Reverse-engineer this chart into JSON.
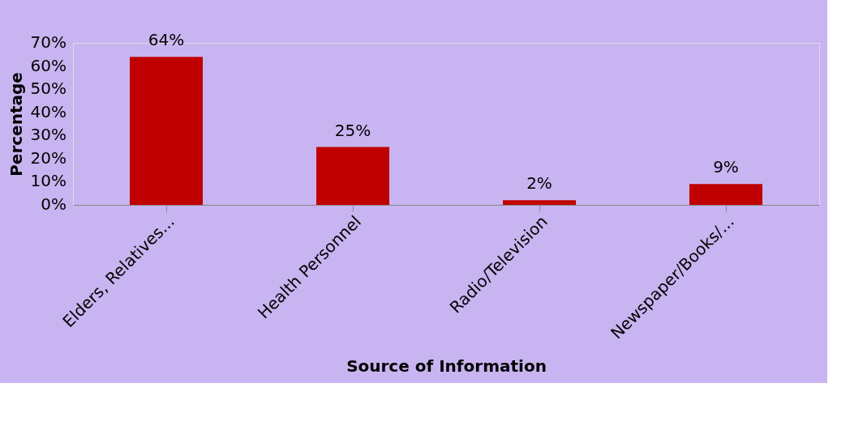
{
  "chart_data": {
    "type": "bar",
    "xlabel": "Source of Information",
    "ylabel": "Percentage",
    "categories": [
      "Elders, Relatives...",
      "Health Personnel",
      "Radio/Television",
      "Newspaper/Books/..."
    ],
    "values": [
      64,
      25,
      2,
      9
    ],
    "color": "#c00000",
    "value_labels": [
      "64%",
      "25%",
      "2%",
      "9%"
    ],
    "ylim": [
      0,
      70
    ],
    "yticks": [
      {
        "value": 0,
        "label": "0%"
      },
      {
        "value": 10,
        "label": "10%"
      },
      {
        "value": 20,
        "label": "20%"
      },
      {
        "value": 30,
        "label": "30%"
      },
      {
        "value": 40,
        "label": "40%"
      },
      {
        "value": 50,
        "label": "50%"
      },
      {
        "value": 60,
        "label": "60%"
      },
      {
        "value": 70,
        "label": "70%"
      }
    ],
    "grid": false
  }
}
